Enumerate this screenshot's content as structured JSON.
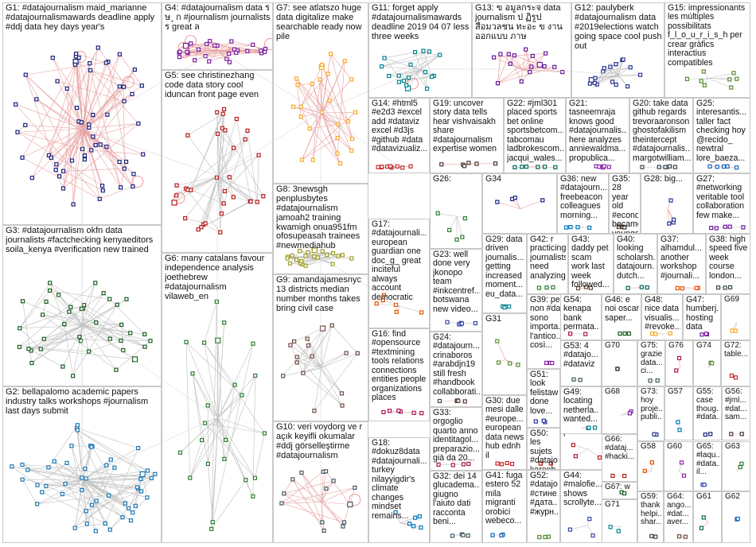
{
  "graph_title": "",
  "groups": [
    {
      "id": "G1",
      "label": "G1: #datajournalism maid_marianne #datajournalismawards deadline apply #ddj data hey days year's",
      "color": "#1a237e",
      "nodes": 62,
      "loops": 3
    },
    {
      "id": "G2",
      "label": "G2: bellapalomo academic papers industry talks workshops #journalism last days submit",
      "color": "#1f78b4",
      "nodes": 52,
      "loops": 0
    },
    {
      "id": "G3",
      "label": "G3: #datajournalism okfn data journalists #factchecking kenyaeditors soila_kenya #verification new trained",
      "color": "#1b5e20",
      "nodes": 40,
      "loops": 0
    },
    {
      "id": "G4",
      "label": "G4: #datajournalism data ร ษ ุ ก #journalism journalists ร great ล",
      "color": "#7b1fa2",
      "nodes": 28,
      "loops": 4
    },
    {
      "id": "G5",
      "label": "G5: see christinezhang code data story cool iduncan front page even",
      "color": "#b71c1c",
      "nodes": 34,
      "loops": 1
    },
    {
      "id": "G6",
      "label": "G6: many catalans favour independence analysis joethebrew #datajournalism vilaweb_en",
      "color": "#2e7d32",
      "nodes": 24,
      "loops": 0
    },
    {
      "id": "G7",
      "label": "G7: see atlatszo huge data digitalize make searchable ready now pile",
      "color": "#f9a825",
      "nodes": 26,
      "loops": 0
    },
    {
      "id": "G8",
      "label": "G8: 3newsgh penplusbytes #datajournalism jamoah2 training kwamigh onua951fm ofosupeasah trainees #newmediahub",
      "color": "#9e9d24",
      "nodes": 22,
      "loops": 0
    },
    {
      "id": "G9",
      "label": "G9: amandajamesnyc 13 districts median number months takes bring civil case",
      "color": "#6d4c41",
      "nodes": 16,
      "loops": 0
    },
    {
      "id": "G10",
      "label": "G10: veri voydorg ve r açık keyifli okumalar #ddj görselleştirme #datajournalism",
      "color": "#455a64",
      "nodes": 14,
      "loops": 1
    },
    {
      "id": "G11",
      "label": "G11: forget apply #datajournalismawards deadline 2019 04 07 less three weeks",
      "color": "#00838f",
      "nodes": 18,
      "loops": 1
    },
    {
      "id": "G12",
      "label": "G12: paulyberk #datajournalism data #2019elections watch going space cool push out",
      "color": "#283593",
      "nodes": 16,
      "loops": 0
    },
    {
      "id": "G13",
      "label": "G13: ข อมูลกระจ data journalism ป ฏิรูปสื่อมวลชน ทะอะ ข งานออกแบบ ภาษ",
      "color": "#6a1b9a",
      "nodes": 16,
      "loops": 0
    },
    {
      "id": "G14",
      "label": "G14: #html5 #e2d3 #excel add #dataviz excel #d3js #github #data #datavizualiz...",
      "color": "#c62828",
      "nodes": 10,
      "loops": 0
    },
    {
      "id": "G15",
      "label": "G15: impressionants les múltiples possibilitats f_l_o_u_r_i_s_h per crear gràfics interactius compatibles",
      "color": "#558b2f",
      "nodes": 8,
      "loops": 0
    },
    {
      "id": "G16",
      "label": "G16: find #opensource #textmining tools relations connections entities people organizations places",
      "color": "#ad1457",
      "nodes": 6,
      "loops": 0
    },
    {
      "id": "G17",
      "label": "G17: #datajournali... european guardian one doc_g_ great inciteful always account democratic",
      "color": "#e65100",
      "nodes": 6,
      "loops": 0
    },
    {
      "id": "G18",
      "label": "G18: #dokuz8data #datajournali... turkey nilayyigdir's climate changes mindset remains...",
      "color": "#0277bd",
      "nodes": 6,
      "loops": 0
    },
    {
      "id": "G19",
      "label": "G19: uncover story data tells hear vishvaisakh share #datajournalism expertise women",
      "color": "#4e342e",
      "nodes": 6,
      "loops": 0
    },
    {
      "id": "G20",
      "label": "G20: take data github regards trevoraaronson ghostofakilism theintercept #datajournalis... margotwilliam...",
      "color": "#37474f",
      "nodes": 6,
      "loops": 0
    },
    {
      "id": "G21",
      "label": "G21: tasneemraja knows good #datajournalis... here analyzes anniewaldma... propublica...",
      "color": "#8e24aa",
      "nodes": 6,
      "loops": 0
    },
    {
      "id": "G22",
      "label": "G22: #jml301 placed sports bet online sportsbetcom... tabcomau ladbrokescom... jacqui_wales...",
      "color": "#00695c",
      "nodes": 6,
      "loops": 0
    },
    {
      "id": "G23",
      "label": "G23: well done very jkonopo team #inkcentref... botswana new video...",
      "color": "#3949ab",
      "nodes": 6,
      "loops": 0
    },
    {
      "id": "G24",
      "label": "G24: #datajourn... crinaboros #arabdjn19 still fresh #handbook collabborati...",
      "color": "#5d4037",
      "nodes": 5,
      "loops": 0
    },
    {
      "id": "G25",
      "label": "G25: interesantis... taller fact checking hoy @recido_ newtral lore_baeza...",
      "color": "#1565c0",
      "nodes": 5,
      "loops": 0
    },
    {
      "id": "G26",
      "label": "G26:",
      "color": "#2e7d32",
      "nodes": 5,
      "loops": 0
    },
    {
      "id": "G27",
      "label": "G27: #networking veritable tool collaboration few make...",
      "color": "#6a1b9a",
      "nodes": 5,
      "loops": 0
    },
    {
      "id": "G28",
      "label": "G28: big...",
      "color": "#283593",
      "nodes": 4,
      "loops": 0
    },
    {
      "id": "G29",
      "label": "G29: data driven journalis... getting increased moment... eu_data...",
      "color": "#00838f",
      "nodes": 4,
      "loops": 0
    },
    {
      "id": "G30",
      "label": "G30: due mesi dalle #europe... european data news hub ednh il",
      "color": "#c62828",
      "nodes": 4,
      "loops": 0
    },
    {
      "id": "G31",
      "label": "G31",
      "color": "#558b2f",
      "nodes": 4,
      "loops": 0
    },
    {
      "id": "G32",
      "label": "G32: dei 14 glucadema... giugno l'aiuto dati racconta beni...",
      "color": "#455a64",
      "nodes": 4,
      "loops": 0
    },
    {
      "id": "G33",
      "label": "G33: orgoglio quarto anno identitagol... preparazio... già da 20...",
      "color": "#ad1457",
      "nodes": 4,
      "loops": 0
    },
    {
      "id": "G34",
      "label": "G34",
      "color": "#1a237e",
      "nodes": 4,
      "loops": 0
    },
    {
      "id": "G35",
      "label": "G35: 28 year old #economist became youngest...",
      "color": "#4e342e",
      "nodes": 4,
      "loops": 0
    },
    {
      "id": "G36",
      "label": "G36: new #datajourn... freebeacon colleagues morning...",
      "color": "#0277bd",
      "nodes": 4,
      "loops": 0
    },
    {
      "id": "G37",
      "label": "G37: alhamdul... another workshop #journali...",
      "color": "#e65100",
      "nodes": 4,
      "loops": 0
    },
    {
      "id": "G38",
      "label": "G38: high speed five week course london...",
      "color": "#37474f",
      "nodes": 3,
      "loops": 0
    },
    {
      "id": "G39",
      "label": "G39: per non #dati sono importa... l'antico... così...",
      "color": "#8e24aa",
      "nodes": 3,
      "loops": 0
    },
    {
      "id": "G40",
      "label": "G40: looking scholarsh... datajourn... dutch...",
      "color": "#00695c",
      "nodes": 3,
      "loops": 0
    },
    {
      "id": "G41",
      "label": "G41: fuga estero 52 mila migranti orobici webeco...",
      "color": "#1565c0",
      "nodes": 3,
      "loops": 0
    },
    {
      "id": "G42",
      "label": "G42: r practicing journalists need analyzing...",
      "color": "#2e7d32",
      "nodes": 3,
      "loops": 0
    },
    {
      "id": "G43",
      "label": "G43: daddy pet scam work last week followed...",
      "color": "#6d4c41",
      "nodes": 3,
      "loops": 0
    },
    {
      "id": "G44",
      "label": "G44: #malofie... shows scrollyte...",
      "color": "#3949ab",
      "nodes": 3,
      "loops": 0
    },
    {
      "id": "G45",
      "label": "G45: #datajo... karenb... plus...",
      "color": "#b71c1c",
      "nodes": 3,
      "loops": 0
    },
    {
      "id": "G46",
      "label": "G46: e noi oscar saper...",
      "color": "#1b5e20",
      "nodes": 3,
      "loops": 0
    },
    {
      "id": "G47",
      "label": "G47: humberj... hosting data",
      "color": "#7b1fa2",
      "nodes": 3,
      "loops": 0
    },
    {
      "id": "G48",
      "label": "G48: nice data visualis... #revoke...",
      "color": "#f9a825",
      "nodes": 3,
      "loops": 0
    },
    {
      "id": "G49",
      "label": "G49: locating netherla... wanted...",
      "color": "#00838f",
      "nodes": 3,
      "loops": 0
    },
    {
      "id": "G50",
      "label": "G50: les sujets #datajo... karenb... plus...",
      "color": "#c62828",
      "nodes": 3,
      "loops": 0
    },
    {
      "id": "G51",
      "label": "G51: look felistaw... done love...",
      "color": "#283593",
      "nodes": 3,
      "loops": 0
    },
    {
      "id": "G52",
      "label": "G52: #datajo... #стине... #дата... #журн...",
      "color": "#558b2f",
      "nodes": 3,
      "loops": 0
    },
    {
      "id": "G53",
      "label": "G53: 4 #datajo... #dataviz",
      "color": "#455a64",
      "nodes": 2,
      "loops": 0
    },
    {
      "id": "G54",
      "label": "G54: kenapa bank permata...",
      "color": "#ad1457",
      "nodes": 2,
      "loops": 0
    },
    {
      "id": "G55",
      "label": "G55: case thoug... #data...",
      "color": "#1a237e",
      "nodes": 2,
      "loops": 0
    },
    {
      "id": "G56",
      "label": "G56: #jml... #dat... sam...",
      "color": "#4e342e",
      "nodes": 2,
      "loops": 0
    },
    {
      "id": "G57",
      "label": "G57",
      "color": "#0277bd",
      "nodes": 2,
      "loops": 0
    },
    {
      "id": "G58",
      "label": "G58",
      "color": "#e65100",
      "nodes": 2,
      "loops": 0
    },
    {
      "id": "G59",
      "label": "G59: thank helpi... shar...",
      "color": "#37474f",
      "nodes": 2,
      "loops": 0
    },
    {
      "id": "G60",
      "label": "G60",
      "color": "#8e24aa",
      "nodes": 2,
      "loops": 0
    },
    {
      "id": "G61",
      "label": "G61",
      "color": "#00695c",
      "nodes": 2,
      "loops": 0
    },
    {
      "id": "G62",
      "label": "G62",
      "color": "#1565c0",
      "nodes": 2,
      "loops": 0
    },
    {
      "id": "G63",
      "label": "G63",
      "color": "#2e7d32",
      "nodes": 2,
      "loops": 0
    },
    {
      "id": "G64",
      "label": "G64: ango... #dat... aver...",
      "color": "#6d4c41",
      "nodes": 2,
      "loops": 0
    },
    {
      "id": "G65",
      "label": "G65: #laqu... #data... il...",
      "color": "#3949ab",
      "nodes": 2,
      "loops": 0
    },
    {
      "id": "G66",
      "label": "G66: #dataj... #hacki...",
      "color": "#b71c1c",
      "nodes": 2,
      "loops": 0
    },
    {
      "id": "G67",
      "label": "G67: w",
      "color": "#1b5e20",
      "nodes": 2,
      "loops": 0
    },
    {
      "id": "G68",
      "label": "G68",
      "color": "#7b1fa2",
      "nodes": 2,
      "loops": 0
    },
    {
      "id": "G69",
      "label": "G69",
      "color": "#f9a825",
      "nodes": 2,
      "loops": 0
    },
    {
      "id": "G70",
      "label": "G70",
      "color": "#111111",
      "nodes": 1,
      "loops": 0
    },
    {
      "id": "G71",
      "label": "G71",
      "color": "#00838f",
      "nodes": 2,
      "loops": 0
    },
    {
      "id": "G72",
      "label": "G72: table...",
      "color": "#c62828",
      "nodes": 2,
      "loops": 0
    },
    {
      "id": "G73",
      "label": "G73: hoy proje... publi...",
      "color": "#283593",
      "nodes": 2,
      "loops": 0
    },
    {
      "id": "G74",
      "label": "G74",
      "color": "#558b2f",
      "nodes": 2,
      "loops": 0
    },
    {
      "id": "G75",
      "label": "G75: grazie data... ci...",
      "color": "#455a64",
      "nodes": 2,
      "loops": 0
    },
    {
      "id": "G76",
      "label": "G76",
      "color": "#ad1457",
      "nodes": 2,
      "loops": 0
    }
  ]
}
